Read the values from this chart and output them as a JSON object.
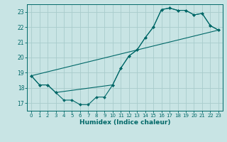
{
  "title": "",
  "xlabel": "Humidex (Indice chaleur)",
  "bg_color": "#c8e4e4",
  "grid_color": "#a8cccc",
  "line_color": "#006868",
  "xlim": [
    -0.5,
    23.5
  ],
  "ylim": [
    16.5,
    23.5
  ],
  "xticks": [
    0,
    1,
    2,
    3,
    4,
    5,
    6,
    7,
    8,
    9,
    10,
    11,
    12,
    13,
    14,
    15,
    16,
    17,
    18,
    19,
    20,
    21,
    22,
    23
  ],
  "yticks": [
    17,
    18,
    19,
    20,
    21,
    22,
    23
  ],
  "line1_x": [
    0,
    1,
    2,
    3,
    4,
    5,
    6,
    7,
    8,
    9,
    10,
    11,
    12,
    13,
    14,
    15,
    16,
    17,
    18,
    19,
    20,
    21,
    22,
    23
  ],
  "line1_y": [
    18.8,
    18.2,
    18.2,
    17.7,
    17.2,
    17.2,
    16.9,
    16.9,
    17.4,
    17.4,
    18.2,
    19.3,
    20.1,
    20.5,
    21.3,
    22.0,
    23.15,
    23.25,
    23.1,
    23.1,
    22.8,
    22.9,
    22.1,
    21.8
  ],
  "line2_x": [
    0,
    1,
    2,
    3,
    10,
    11,
    12,
    13,
    14,
    15,
    16,
    17,
    18,
    19,
    20,
    21,
    22,
    23
  ],
  "line2_y": [
    18.8,
    18.2,
    18.2,
    17.7,
    18.2,
    19.3,
    20.1,
    20.5,
    21.3,
    22.0,
    23.15,
    23.25,
    23.1,
    23.1,
    22.8,
    22.9,
    22.1,
    21.8
  ],
  "line3_x": [
    0,
    23
  ],
  "line3_y": [
    18.8,
    21.8
  ]
}
